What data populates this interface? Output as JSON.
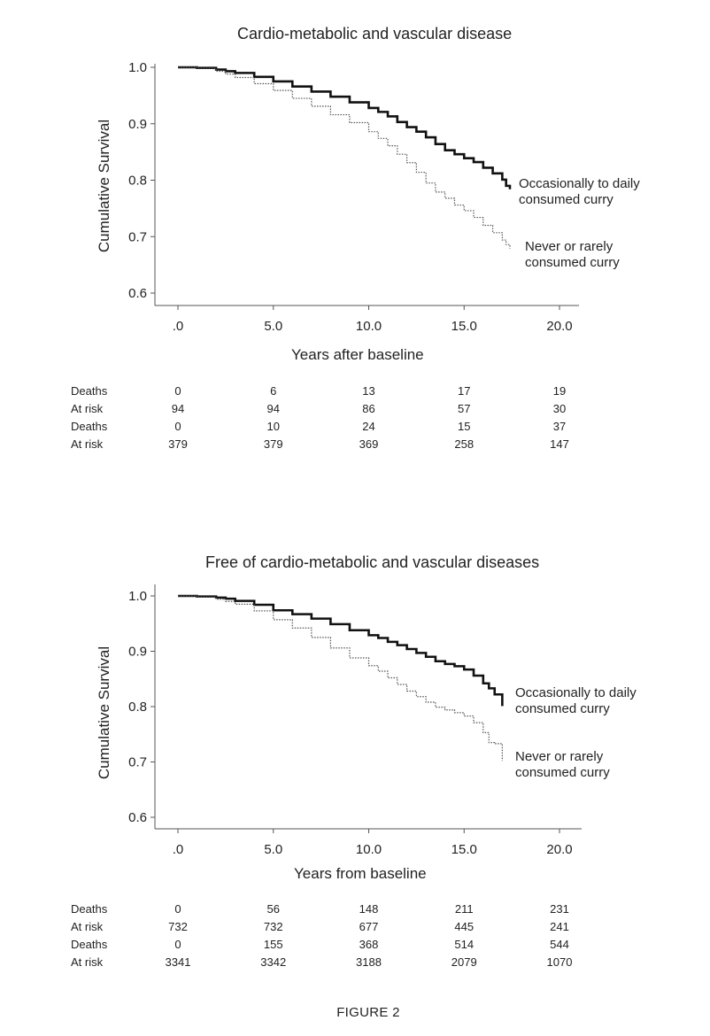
{
  "figure_caption": "FIGURE 2",
  "chart_data": [
    {
      "type": "line",
      "title": "Cardio-metabolic and vascular disease",
      "xlabel": "Years after baseline",
      "ylabel": "Cumulative Survival",
      "xlim": [
        -1.2,
        21.0
      ],
      "ylim": [
        0.58,
        1.02
      ],
      "x_ticks": [
        0,
        5,
        10,
        15,
        20
      ],
      "x_tick_labels": [
        ".0",
        "5.0",
        "10.0",
        "15.0",
        "20.0"
      ],
      "y_ticks": [
        0.6,
        0.7,
        0.8,
        0.9,
        1.0
      ],
      "y_tick_labels": [
        "0.6",
        "0.7",
        "0.8",
        "0.9",
        "1.0"
      ],
      "grid": false,
      "series": [
        {
          "name": "Occasionally to daily consumed curry",
          "label_lines": [
            "Occasionally to daily",
            "consumed curry"
          ],
          "style": "solid",
          "x": [
            0,
            1,
            2,
            2.5,
            3,
            4,
            5,
            6,
            7,
            8,
            9,
            10,
            10.5,
            11,
            11.5,
            12,
            12.5,
            13,
            13.5,
            14,
            14.5,
            15,
            15.5,
            16,
            16.5,
            17,
            17.2,
            17.4
          ],
          "y": [
            1.0,
            0.999,
            0.996,
            0.993,
            0.99,
            0.983,
            0.975,
            0.966,
            0.957,
            0.948,
            0.938,
            0.928,
            0.921,
            0.913,
            0.903,
            0.894,
            0.886,
            0.876,
            0.864,
            0.853,
            0.846,
            0.839,
            0.832,
            0.822,
            0.812,
            0.801,
            0.79,
            0.784
          ]
        },
        {
          "name": "Never or rarely consumed curry",
          "label_lines": [
            "Never or rarely",
            "consumed curry"
          ],
          "style": "dotted",
          "x": [
            0,
            1,
            2,
            2.5,
            3,
            4,
            5,
            6,
            7,
            8,
            9,
            10,
            10.5,
            11,
            11.5,
            12,
            12.5,
            13,
            13.5,
            14,
            14.5,
            15,
            15.5,
            16,
            16.5,
            17,
            17.2,
            17.4
          ],
          "y": [
            1.0,
            0.998,
            0.993,
            0.988,
            0.982,
            0.971,
            0.959,
            0.945,
            0.931,
            0.916,
            0.902,
            0.886,
            0.874,
            0.861,
            0.846,
            0.831,
            0.814,
            0.795,
            0.779,
            0.768,
            0.756,
            0.746,
            0.734,
            0.72,
            0.707,
            0.694,
            0.686,
            0.679
          ]
        }
      ],
      "risk_table": {
        "columns_x": [
          0,
          5,
          10,
          15,
          20
        ],
        "rows": [
          {
            "label": "Deaths",
            "values": [
              "0",
              "6",
              "13",
              "17",
              "19"
            ]
          },
          {
            "label": "At risk",
            "values": [
              "94",
              "94",
              "86",
              "57",
              "30"
            ]
          },
          {
            "label": "Deaths",
            "values": [
              "0",
              "10",
              "24",
              "15",
              "37"
            ]
          },
          {
            "label": "At risk",
            "values": [
              "379",
              "379",
              "369",
              "258",
              "147"
            ]
          }
        ]
      }
    },
    {
      "type": "line",
      "title": "Free of cardio-metabolic and vascular diseases",
      "xlabel": "Years from baseline",
      "ylabel": "Cumulative Survival",
      "xlim": [
        -1.2,
        21.0
      ],
      "ylim": [
        0.58,
        1.02
      ],
      "x_ticks": [
        0,
        5,
        10,
        15,
        20
      ],
      "x_tick_labels": [
        ".0",
        "5.0",
        "10.0",
        "15.0",
        "20.0"
      ],
      "y_ticks": [
        0.6,
        0.7,
        0.8,
        0.9,
        1.0
      ],
      "y_tick_labels": [
        "0.6",
        "0.7",
        "0.8",
        "0.9",
        "1.0"
      ],
      "grid": false,
      "series": [
        {
          "name": "Occasionally to daily consumed curry",
          "label_lines": [
            "Occasionally to daily",
            "consumed curry"
          ],
          "style": "solid",
          "x": [
            0,
            1,
            2,
            2.5,
            3,
            4,
            5,
            6,
            7,
            8,
            9,
            10,
            10.5,
            11,
            11.5,
            12,
            12.5,
            13,
            13.5,
            14,
            14.5,
            15,
            15.5,
            16,
            16.3,
            16.6,
            16.9,
            17.0
          ],
          "y": [
            1.0,
            0.999,
            0.997,
            0.995,
            0.991,
            0.984,
            0.974,
            0.967,
            0.959,
            0.949,
            0.938,
            0.929,
            0.924,
            0.917,
            0.911,
            0.904,
            0.897,
            0.89,
            0.882,
            0.877,
            0.873,
            0.867,
            0.856,
            0.842,
            0.833,
            0.822,
            0.822,
            0.801
          ]
        },
        {
          "name": "Never or rarely consumed curry",
          "label_lines": [
            "Never or rarely",
            "consumed curry"
          ],
          "style": "dotted",
          "x": [
            0,
            1,
            2,
            2.5,
            3,
            4,
            5,
            6,
            7,
            8,
            9,
            10,
            10.5,
            11,
            11.5,
            12,
            12.5,
            13,
            13.5,
            14,
            14.5,
            15,
            15.5,
            16,
            16.3,
            16.6,
            16.9,
            17.0
          ],
          "y": [
            1.0,
            0.998,
            0.994,
            0.99,
            0.985,
            0.973,
            0.957,
            0.942,
            0.925,
            0.906,
            0.888,
            0.874,
            0.864,
            0.852,
            0.84,
            0.828,
            0.818,
            0.808,
            0.799,
            0.794,
            0.789,
            0.783,
            0.771,
            0.753,
            0.735,
            0.733,
            0.733,
            0.702
          ]
        }
      ],
      "risk_table": {
        "columns_x": [
          0,
          5,
          10,
          15,
          20
        ],
        "rows": [
          {
            "label": "Deaths",
            "values": [
              "0",
              "56",
              "148",
              "211",
              "231"
            ]
          },
          {
            "label": "At risk",
            "values": [
              "732",
              "732",
              "677",
              "445",
              "241"
            ]
          },
          {
            "label": "Deaths",
            "values": [
              "0",
              "155",
              "368",
              "514",
              "544"
            ]
          },
          {
            "label": "At risk",
            "values": [
              "3341",
              "3342",
              "3188",
              "2079",
              "1070"
            ]
          }
        ]
      }
    }
  ]
}
